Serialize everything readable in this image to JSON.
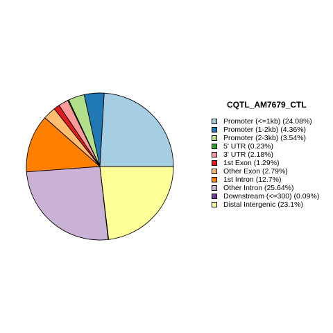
{
  "chart_data": {
    "type": "pie",
    "title": "CQTL_AM7679_CTL",
    "legend_position": "right",
    "direction": "counterclockwise",
    "start_angle_deg": 0,
    "slices": [
      {
        "label": "Promoter (<=1kb) (24.08%)",
        "value": 24.08,
        "color": "#A6CEE3"
      },
      {
        "label": "Promoter (1-2kb) (4.36%)",
        "value": 4.36,
        "color": "#1F78B4"
      },
      {
        "label": "Promoter (2-3kb) (3.54%)",
        "value": 3.54,
        "color": "#B2DF8A"
      },
      {
        "label": "5' UTR (0.23%)",
        "value": 0.23,
        "color": "#33A02C"
      },
      {
        "label": "3' UTR (2.18%)",
        "value": 2.18,
        "color": "#FB9A99"
      },
      {
        "label": "1st Exon (1.29%)",
        "value": 1.29,
        "color": "#E31A1C"
      },
      {
        "label": "Other Exon (2.79%)",
        "value": 2.79,
        "color": "#FDBF6F"
      },
      {
        "label": "1st Intron (12.7%)",
        "value": 12.7,
        "color": "#FF7F00"
      },
      {
        "label": "Other Intron (25.64%)",
        "value": 25.64,
        "color": "#CAB2D6"
      },
      {
        "label": "Downstream (<=300) (0.09%)",
        "value": 0.09,
        "color": "#6A3D9A"
      },
      {
        "label": "Distal Intergenic (23.1%)",
        "value": 23.1,
        "color": "#FFFF99"
      }
    ]
  }
}
